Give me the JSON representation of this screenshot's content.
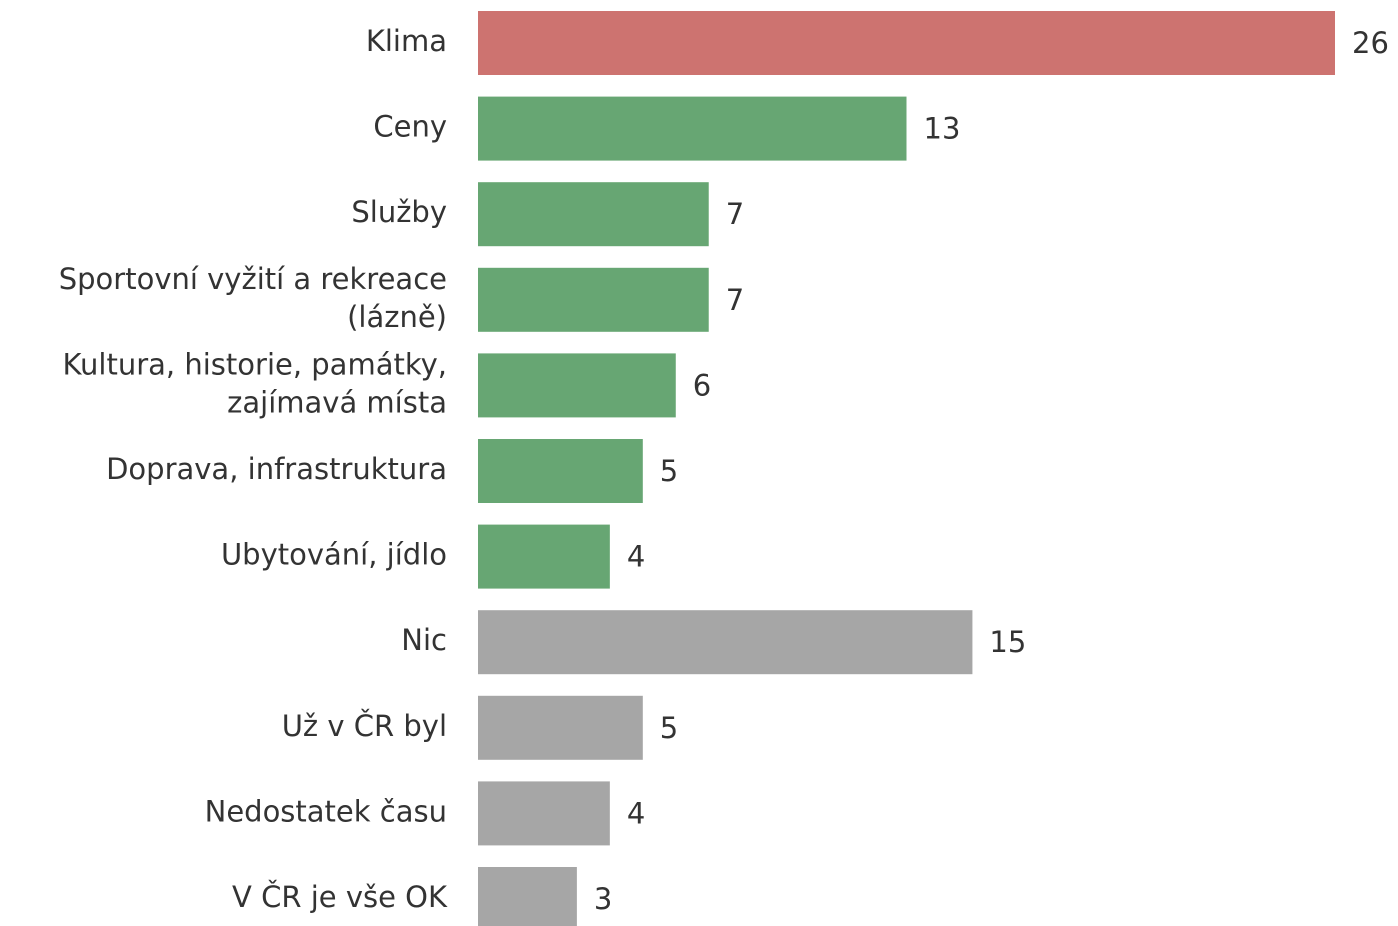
{
  "chart_data": {
    "type": "barh",
    "categories": [
      "Klima",
      "Ceny",
      "Služby",
      "Sportovní vyžití a rekreace\n(lázně)",
      "Kultura, historie, památky,\nzajímavá místa",
      "Doprava, infrastruktura",
      "Ubytování, jídlo",
      "Nic",
      "Už v ČR byl",
      "Nedostatek času",
      "V ČR je vše OK"
    ],
    "values": [
      26,
      13,
      7,
      7,
      6,
      5,
      4,
      15,
      5,
      4,
      3
    ],
    "colors": [
      "#cd7370",
      "#67a673",
      "#67a673",
      "#67a673",
      "#67a673",
      "#67a673",
      "#67a673",
      "#a6a6a6",
      "#a6a6a6",
      "#a6a6a6",
      "#a6a6a6"
    ]
  }
}
